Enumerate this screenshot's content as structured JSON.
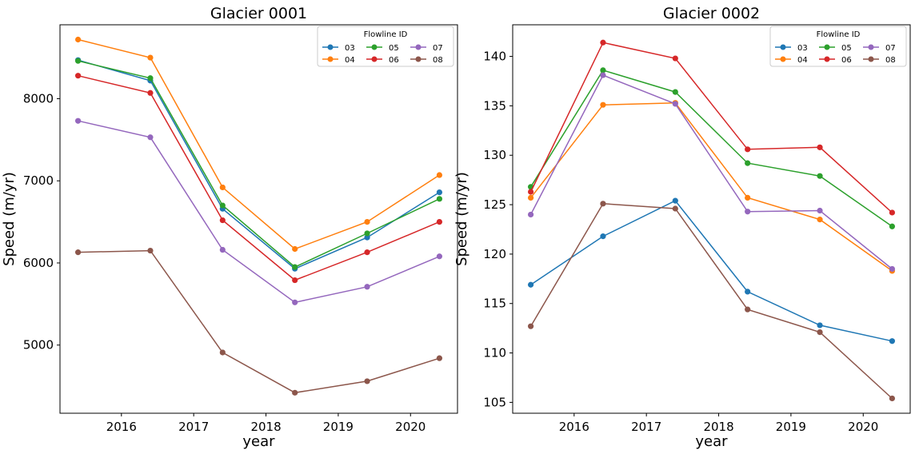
{
  "chart_data": [
    {
      "type": "line",
      "title": "Glacier 0001",
      "xlabel": "year",
      "ylabel": "Speed (m/yr)",
      "x": [
        2015.4,
        2016.4,
        2017.4,
        2018.4,
        2019.4,
        2020.4
      ],
      "xlim": [
        2015.15,
        2020.65
      ],
      "ylim": [
        4170,
        8900
      ],
      "xticks": [
        2016,
        2017,
        2018,
        2019,
        2020
      ],
      "yticks": [
        5000,
        6000,
        7000,
        8000
      ],
      "legend": {
        "title": "Flowline ID",
        "placement": "upper right",
        "ncol": 3
      },
      "series": [
        {
          "name": "03",
          "color": "#1f77b4",
          "values": [
            8470,
            8220,
            6660,
            5930,
            6310,
            6860
          ]
        },
        {
          "name": "04",
          "color": "#ff7f0e",
          "values": [
            8720,
            8500,
            6920,
            6170,
            6500,
            7070
          ]
        },
        {
          "name": "05",
          "color": "#2ca02c",
          "values": [
            8460,
            8250,
            6700,
            5950,
            6360,
            6780
          ]
        },
        {
          "name": "06",
          "color": "#d62728",
          "values": [
            8280,
            8070,
            6520,
            5790,
            6130,
            6500
          ]
        },
        {
          "name": "07",
          "color": "#9467bd",
          "values": [
            7730,
            7530,
            6160,
            5520,
            5710,
            6080
          ]
        },
        {
          "name": "08",
          "color": "#8c564b",
          "values": [
            6130,
            6150,
            4910,
            4420,
            4560,
            4840
          ]
        }
      ]
    },
    {
      "type": "line",
      "title": "Glacier 0002",
      "xlabel": "year",
      "ylabel": "Speed (m/yr)",
      "x": [
        2015.4,
        2016.4,
        2017.4,
        2018.4,
        2019.4,
        2020.4
      ],
      "xlim": [
        2015.15,
        2020.65
      ],
      "ylim": [
        103.9,
        143.2
      ],
      "xticks": [
        2016,
        2017,
        2018,
        2019,
        2020
      ],
      "yticks": [
        105,
        110,
        115,
        120,
        125,
        130,
        135,
        140
      ],
      "legend": {
        "title": "Flowline ID",
        "placement": "upper right",
        "ncol": 3
      },
      "series": [
        {
          "name": "03",
          "color": "#1f77b4",
          "values": [
            116.9,
            121.8,
            125.4,
            116.2,
            112.8,
            111.2
          ]
        },
        {
          "name": "04",
          "color": "#ff7f0e",
          "values": [
            125.7,
            135.1,
            135.3,
            125.7,
            123.5,
            118.3
          ]
        },
        {
          "name": "05",
          "color": "#2ca02c",
          "values": [
            126.8,
            138.6,
            136.4,
            129.2,
            127.9,
            122.8
          ]
        },
        {
          "name": "06",
          "color": "#d62728",
          "values": [
            126.3,
            141.4,
            139.8,
            130.6,
            130.8,
            124.2
          ]
        },
        {
          "name": "07",
          "color": "#9467bd",
          "values": [
            124.0,
            138.1,
            135.2,
            124.3,
            124.4,
            118.5
          ]
        },
        {
          "name": "08",
          "color": "#8c564b",
          "values": [
            112.7,
            125.1,
            124.6,
            114.4,
            112.1,
            105.4
          ]
        }
      ]
    }
  ]
}
